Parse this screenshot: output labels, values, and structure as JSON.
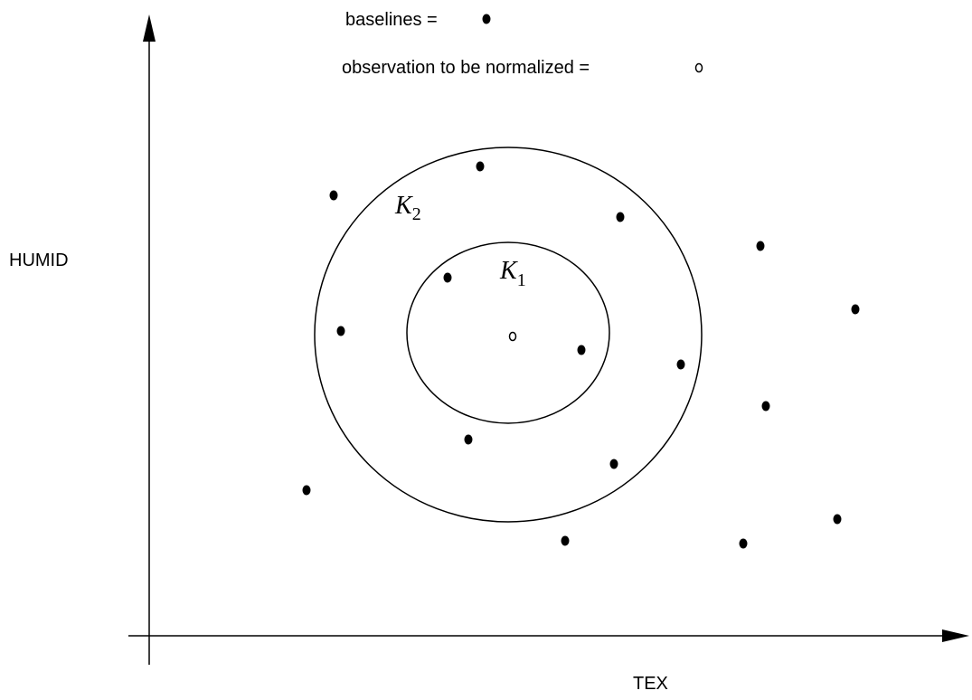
{
  "legend": {
    "baselines_label": "baselines =",
    "observation_label": "observation to be normalized =",
    "baseline_marker": "filled-dot",
    "observation_marker": "open-circle"
  },
  "axes": {
    "x_label": "TEX",
    "y_label": "HUMID"
  },
  "regions": {
    "inner": {
      "letter": "K",
      "subscript": "1"
    },
    "outer": {
      "letter": "K",
      "subscript": "2"
    }
  },
  "colors": {
    "ink": "#000000",
    "background": "#ffffff"
  }
}
